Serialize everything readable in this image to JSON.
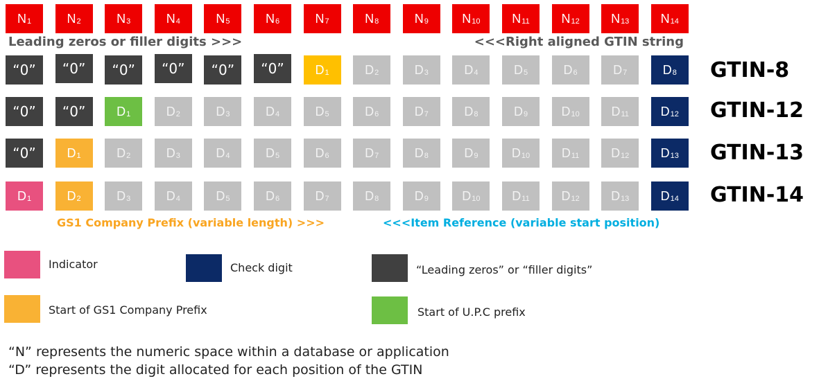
{
  "header_row": [
    "N",
    "N",
    "N",
    "N",
    "N",
    "N",
    "N",
    "N",
    "N",
    "N",
    "N",
    "N",
    "N",
    "N"
  ],
  "header_subscripts": [
    "1",
    "2",
    "3",
    "4",
    "5",
    "6",
    "7",
    "8",
    "9",
    "10",
    "11",
    "12",
    "13",
    "14"
  ],
  "banners": {
    "left": "Leading zeros or filler digits >>>",
    "right": "<<<Right aligned GTIN string",
    "prefix_note": "GS1 Company Prefix (variable length) >>>",
    "itemref_note": "<<<Item Reference (variable start position)"
  },
  "rows": [
    {
      "label": "GTIN-8",
      "cells": [
        {
          "text": "“0”",
          "sub": "",
          "kind": "black"
        },
        {
          "text": "“0”",
          "sub": "",
          "kind": "black"
        },
        {
          "text": "“0”",
          "sub": "",
          "kind": "black"
        },
        {
          "text": "“0”",
          "sub": "",
          "kind": "black"
        },
        {
          "text": "“0”",
          "sub": "",
          "kind": "black"
        },
        {
          "text": "“0”",
          "sub": "",
          "kind": "black"
        },
        {
          "text": "D",
          "sub": "1",
          "kind": "yellow"
        },
        {
          "text": "D",
          "sub": "2",
          "kind": "gray"
        },
        {
          "text": "D",
          "sub": "3",
          "kind": "gray"
        },
        {
          "text": "D",
          "sub": "4",
          "kind": "gray"
        },
        {
          "text": "D",
          "sub": "5",
          "kind": "gray"
        },
        {
          "text": "D",
          "sub": "6",
          "kind": "gray"
        },
        {
          "text": "D",
          "sub": "7",
          "kind": "gray"
        },
        {
          "text": "D",
          "sub": "8",
          "kind": "navy"
        }
      ]
    },
    {
      "label": "GTIN-12",
      "cells": [
        {
          "text": "“0”",
          "sub": "",
          "kind": "black"
        },
        {
          "text": "“0”",
          "sub": "",
          "kind": "black"
        },
        {
          "text": "D",
          "sub": "1",
          "kind": "green"
        },
        {
          "text": "D",
          "sub": "2",
          "kind": "gray"
        },
        {
          "text": "D",
          "sub": "3",
          "kind": "gray"
        },
        {
          "text": "D",
          "sub": "4",
          "kind": "gray"
        },
        {
          "text": "D",
          "sub": "5",
          "kind": "gray"
        },
        {
          "text": "D",
          "sub": "6",
          "kind": "gray"
        },
        {
          "text": "D",
          "sub": "7",
          "kind": "gray"
        },
        {
          "text": "D",
          "sub": "8",
          "kind": "gray"
        },
        {
          "text": "D",
          "sub": "9",
          "kind": "gray"
        },
        {
          "text": "D",
          "sub": "10",
          "kind": "gray"
        },
        {
          "text": "D",
          "sub": "11",
          "kind": "gray"
        },
        {
          "text": "D",
          "sub": "12",
          "kind": "navy"
        }
      ]
    },
    {
      "label": "GTIN-13",
      "cells": [
        {
          "text": "“0”",
          "sub": "",
          "kind": "black"
        },
        {
          "text": "D",
          "sub": "1",
          "kind": "orange"
        },
        {
          "text": "D",
          "sub": "2",
          "kind": "gray"
        },
        {
          "text": "D",
          "sub": "3",
          "kind": "gray"
        },
        {
          "text": "D",
          "sub": "4",
          "kind": "gray"
        },
        {
          "text": "D",
          "sub": "5",
          "kind": "gray"
        },
        {
          "text": "D",
          "sub": "6",
          "kind": "gray"
        },
        {
          "text": "D",
          "sub": "7",
          "kind": "gray"
        },
        {
          "text": "D",
          "sub": "8",
          "kind": "gray"
        },
        {
          "text": "D",
          "sub": "9",
          "kind": "gray"
        },
        {
          "text": "D",
          "sub": "10",
          "kind": "gray"
        },
        {
          "text": "D",
          "sub": "11",
          "kind": "gray"
        },
        {
          "text": "D",
          "sub": "12",
          "kind": "gray"
        },
        {
          "text": "D",
          "sub": "13",
          "kind": "navy"
        }
      ]
    },
    {
      "label": "GTIN-14",
      "cells": [
        {
          "text": "D",
          "sub": "1",
          "kind": "pink"
        },
        {
          "text": "D",
          "sub": "2",
          "kind": "orange"
        },
        {
          "text": "D",
          "sub": "3",
          "kind": "gray"
        },
        {
          "text": "D",
          "sub": "4",
          "kind": "gray"
        },
        {
          "text": "D",
          "sub": "5",
          "kind": "gray"
        },
        {
          "text": "D",
          "sub": "6",
          "kind": "gray"
        },
        {
          "text": "D",
          "sub": "7",
          "kind": "gray"
        },
        {
          "text": "D",
          "sub": "8",
          "kind": "gray"
        },
        {
          "text": "D",
          "sub": "9",
          "kind": "gray"
        },
        {
          "text": "D",
          "sub": "10",
          "kind": "gray"
        },
        {
          "text": "D",
          "sub": "11",
          "kind": "gray"
        },
        {
          "text": "D",
          "sub": "12",
          "kind": "gray"
        },
        {
          "text": "D",
          "sub": "13",
          "kind": "gray"
        },
        {
          "text": "D",
          "sub": "14",
          "kind": "navy"
        }
      ]
    }
  ],
  "legend": {
    "indicator": "Indicator",
    "check_digit": "Check digit",
    "filler": "“Leading zeros” or “filler digits”",
    "prefix_start": "Start of GS1 Company Prefix",
    "upc_start": "Start of U.P.C prefix"
  },
  "notes": [
    "“N” represents the numeric space within a database or application",
    "“D” represents the digit allocated for each position of the GTIN"
  ],
  "colors": {
    "header": "#ee0000",
    "filler": "#404040",
    "digit": "#c0c0c0",
    "check_digit": "#0c2a66",
    "gtin8_start": "#ffc000",
    "company_prefix": "#f9b234",
    "indicator": "#e8517f",
    "upc_prefix": "#6dbf44"
  }
}
